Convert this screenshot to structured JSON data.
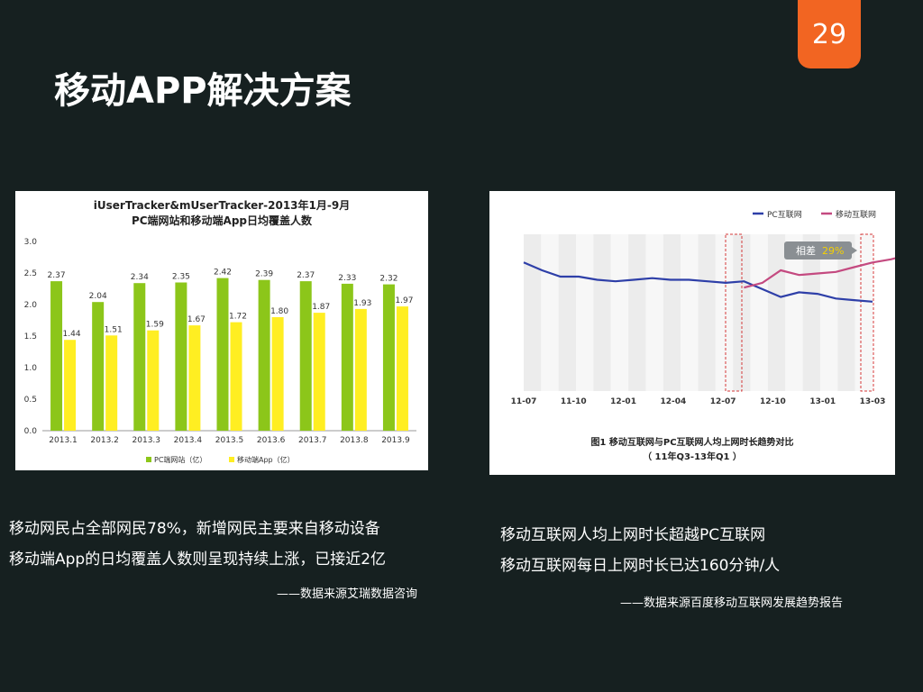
{
  "page_number": "29",
  "slide_title": "移动APP解决方案",
  "captions_left": {
    "line1": "移动网民占全部网民78%，新增网民主要来自移动设备",
    "line2": "移动端App的日均覆盖人数则呈现持续上涨，已接近2亿",
    "source": "——数据来源艾瑞数据咨询"
  },
  "captions_right": {
    "line1": "移动互联网人均上网时长超越PC互联网",
    "line2": "移动互联网每日上网时长已达160分钟/人",
    "source": "——数据来源百度移动互联网发展趋势报告"
  },
  "chart_data": [
    {
      "type": "bar",
      "title": "iUserTracker&mUserTracker-2013年1月-9月",
      "subtitle": "PC端网站和移动端App日均覆盖人数",
      "categories": [
        "2013.1",
        "2013.2",
        "2013.3",
        "2013.4",
        "2013.5",
        "2013.6",
        "2013.7",
        "2013.8",
        "2013.9"
      ],
      "series": [
        {
          "name": "PC端网站（亿）",
          "color": "#8cc61a",
          "values": [
            2.37,
            2.04,
            2.34,
            2.35,
            2.42,
            2.39,
            2.37,
            2.33,
            2.32
          ]
        },
        {
          "name": "移动端App（亿）",
          "color": "#ffee22",
          "values": [
            1.44,
            1.51,
            1.59,
            1.67,
            1.72,
            1.8,
            1.87,
            1.93,
            1.97
          ]
        }
      ],
      "yticks": [
        "0.0",
        "0.5",
        "1.0",
        "1.5",
        "2.0",
        "2.5",
        "3.0"
      ],
      "ylim": [
        0,
        3.0
      ],
      "grid": false,
      "legend": "bottom"
    },
    {
      "type": "line",
      "x_ticks": [
        "11-07",
        "11-10",
        "12-01",
        "12-04",
        "12-07",
        "12-10",
        "13-01",
        "13-03"
      ],
      "series": [
        {
          "name": "PC互联网",
          "color": "#2e3fa8",
          "values": [
            0.82,
            0.77,
            0.73,
            0.73,
            0.71,
            0.7,
            0.71,
            0.72,
            0.71,
            0.71,
            0.7,
            0.69,
            0.7,
            0.65,
            0.6,
            0.63,
            0.62,
            0.59,
            0.58,
            0.57
          ]
        },
        {
          "name": "移动互联网",
          "color": "#c44a80",
          "start_index": 12,
          "values": [
            0.66,
            0.69,
            0.77,
            0.74,
            0.75,
            0.76,
            0.79,
            0.82,
            0.84,
            0.87
          ]
        }
      ],
      "annotation": {
        "label": "相差",
        "value": "29%",
        "value_color": "#f5d000"
      },
      "caption_line1": "图1 移动互联网与PC互联网人均上网时长趋势对比",
      "caption_line2": "（ 11年Q3-13年Q1 ）",
      "legend": "top-right"
    }
  ]
}
